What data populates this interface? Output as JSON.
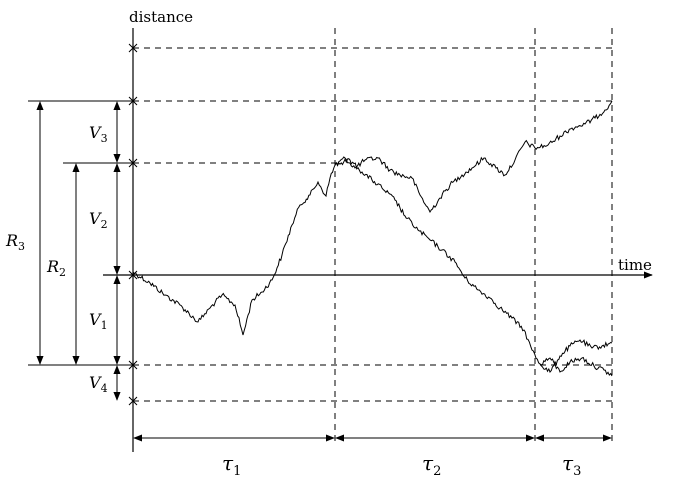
{
  "axes": {
    "y_label": "distance",
    "x_label": "time"
  },
  "vertical_labels": [
    {
      "id": "V3",
      "main": "V",
      "sub": "3"
    },
    {
      "id": "V2",
      "main": "V",
      "sub": "2"
    },
    {
      "id": "V1",
      "main": "V",
      "sub": "1"
    },
    {
      "id": "V4",
      "main": "V",
      "sub": "4"
    },
    {
      "id": "R3",
      "main": "R",
      "sub": "3"
    },
    {
      "id": "R2",
      "main": "R",
      "sub": "2"
    }
  ],
  "time_labels": [
    {
      "id": "tau1",
      "main": "τ",
      "sub": "1"
    },
    {
      "id": "tau2",
      "main": "τ",
      "sub": "2"
    },
    {
      "id": "tau3",
      "main": "τ",
      "sub": "3"
    }
  ],
  "colors": {
    "ink": "#000000",
    "background": "#ffffff"
  }
}
